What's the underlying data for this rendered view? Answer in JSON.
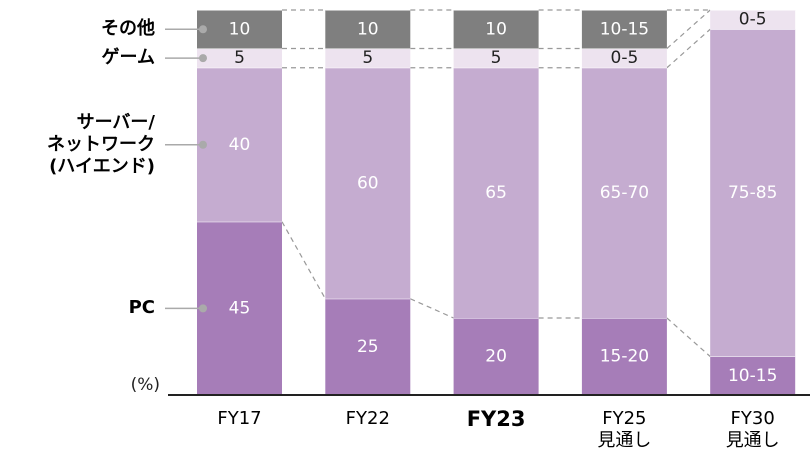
{
  "chart_data": {
    "type": "stacked_bar",
    "categories": [
      "FY17",
      "FY22",
      "FY23",
      "FY25\n見通し",
      "FY30\n見通し"
    ],
    "highlight_index": 2,
    "y_label": "(%)",
    "ylim": [
      0,
      100
    ],
    "connectors": true,
    "series": [
      {
        "name": "PC",
        "color": "#a67db8",
        "label_color": "#ffffff",
        "values": [
          45,
          25,
          20,
          20,
          10
        ],
        "value_labels": [
          "45",
          "25",
          "20",
          "15-20",
          "10-15"
        ]
      },
      {
        "name": "サーバー/\nネットワーク\n(ハイエンド)",
        "color": "#c5acd0",
        "label_color": "#ffffff",
        "values": [
          40,
          60,
          65,
          65,
          85
        ],
        "value_labels": [
          "40",
          "60",
          "65",
          "65-70",
          "75-85"
        ]
      },
      {
        "name": "ゲーム",
        "color": "#ede3ef",
        "label_color": "#222222",
        "values": [
          5,
          5,
          5,
          5,
          5
        ],
        "value_labels": [
          "5",
          "5",
          "5",
          "0-5",
          "0-5"
        ]
      },
      {
        "name": "その他",
        "color": "#7f7f7f",
        "label_color": "#ffffff",
        "values": [
          10,
          10,
          10,
          10,
          null
        ],
        "value_labels": [
          "10",
          "10",
          "10",
          "10-15",
          null
        ]
      }
    ]
  }
}
